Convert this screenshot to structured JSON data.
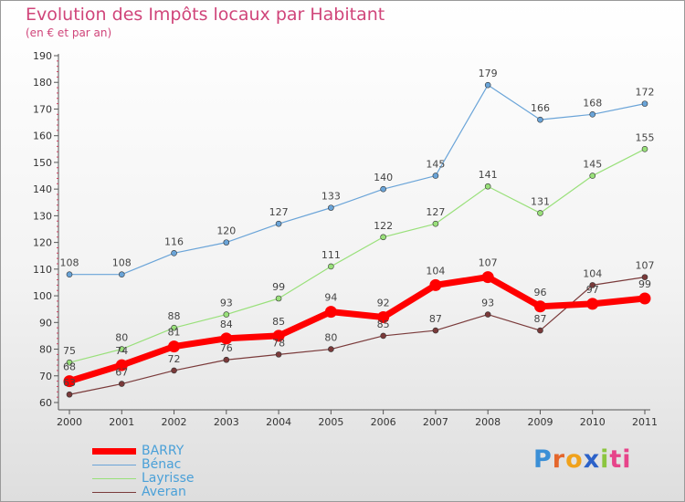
{
  "title": "Evolution des Impôts locaux par Habitant",
  "subtitle": "(en € et par an)",
  "logo": "Proxiti",
  "chart_data": {
    "type": "line",
    "title": "Evolution des Impôts locaux par Habitant",
    "subtitle": "(en € et par an)",
    "xlabel": "",
    "ylabel": "",
    "x": [
      "2000",
      "2001",
      "2002",
      "2003",
      "2004",
      "2005",
      "2006",
      "2007",
      "2008",
      "2009",
      "2010",
      "2011"
    ],
    "ylim": [
      60,
      190
    ],
    "yticks": [
      60,
      70,
      80,
      90,
      100,
      110,
      120,
      130,
      140,
      150,
      160,
      170,
      180,
      190
    ],
    "grid": false,
    "legend_position": "bottom-left",
    "series": [
      {
        "name": "BARRY",
        "color": "#ff0000",
        "values": [
          68,
          74,
          81,
          84,
          85,
          94,
          92,
          104,
          107,
          96,
          97,
          99
        ]
      },
      {
        "name": "Bénac",
        "color": "#6aa4d8",
        "values": [
          108,
          108,
          116,
          120,
          127,
          133,
          140,
          145,
          179,
          166,
          168,
          172
        ]
      },
      {
        "name": "Layrisse",
        "color": "#99e07a",
        "values": [
          75,
          80,
          88,
          93,
          99,
          111,
          122,
          127,
          141,
          131,
          145,
          155
        ]
      },
      {
        "name": "Averan",
        "color": "#7a3a3a",
        "values": [
          63,
          67,
          72,
          76,
          78,
          80,
          85,
          87,
          93,
          87,
          104,
          107
        ]
      }
    ]
  }
}
